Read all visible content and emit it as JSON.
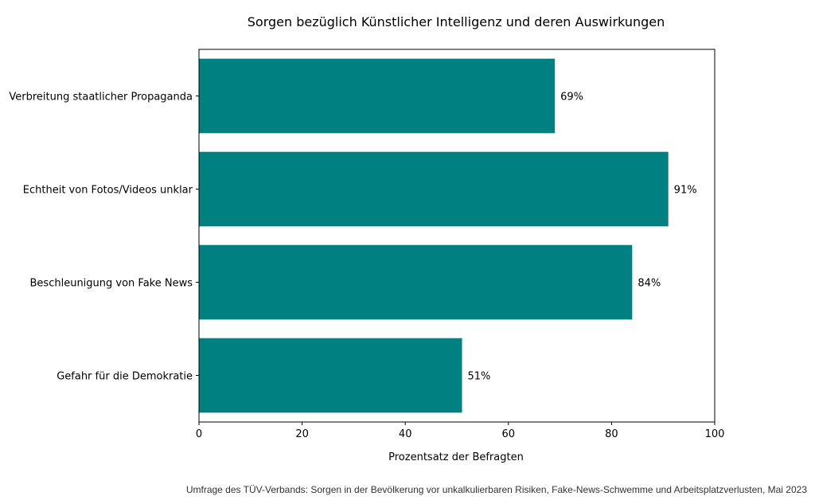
{
  "chart_data": {
    "type": "bar",
    "orientation": "horizontal",
    "title": "Sorgen bezüglich Künstlicher Intelligenz und deren Auswirkungen",
    "xlabel": "Prozentsatz der Befragten",
    "ylabel": "",
    "categories": [
      "Verbreitung staatlicher Propaganda",
      "Echtheit von Fotos/Videos unklar",
      "Beschleunigung von Fake News",
      "Gefahr für die Demokratie"
    ],
    "values": [
      69,
      91,
      84,
      51
    ],
    "value_labels": [
      "69%",
      "91%",
      "84%",
      "51%"
    ],
    "xlim": [
      0,
      100
    ],
    "x_ticks": [
      0,
      20,
      40,
      60,
      80,
      100
    ],
    "bar_color": "#008080",
    "grid": false,
    "source": "Umfrage des TÜV-Verbands: Sorgen in der Bevölkerung vor unkalkulierbaren Risiken, Fake-News-Schwemme und Arbeitsplatzverlusten, Mai 2023"
  }
}
